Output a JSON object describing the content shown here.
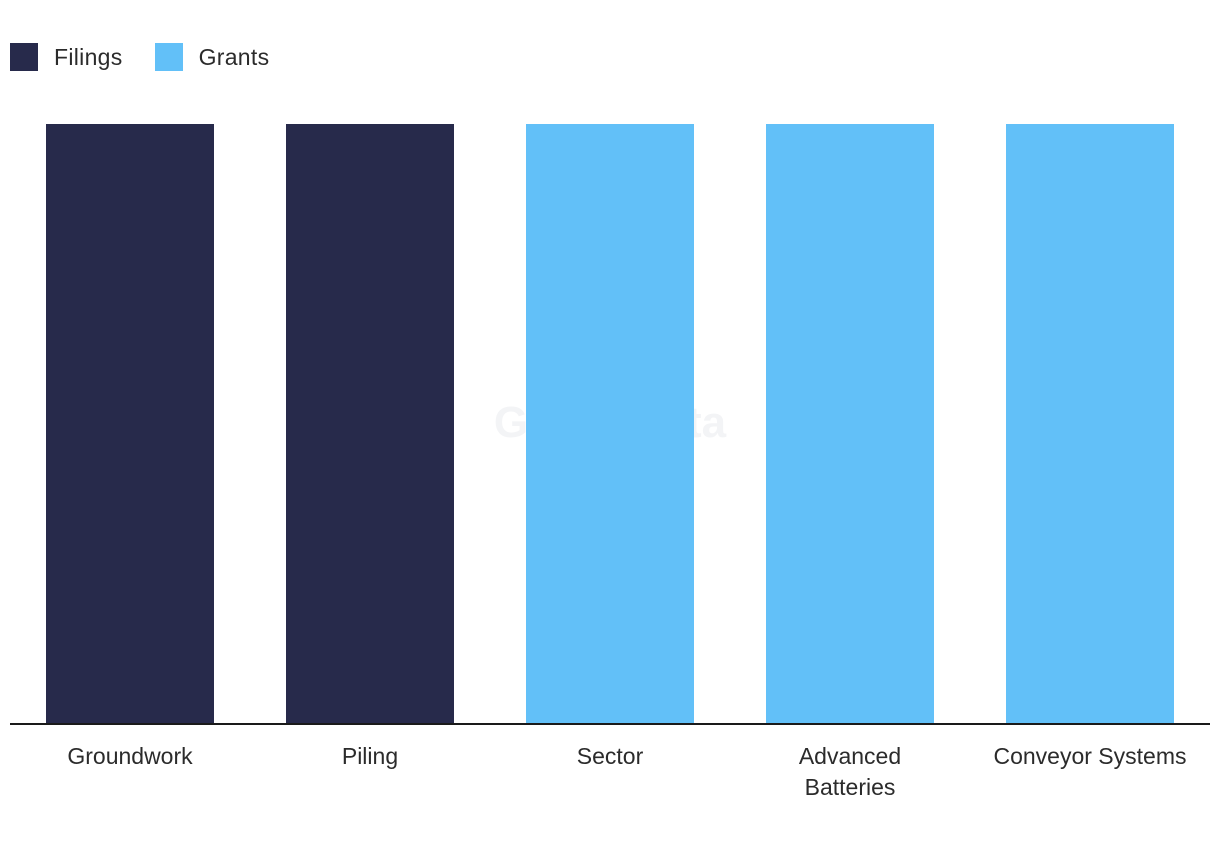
{
  "watermark": "GlobalData",
  "legend": [
    {
      "name": "Filings",
      "color": "#272a4b"
    },
    {
      "name": "Grants",
      "color": "#62c0f8"
    }
  ],
  "chart_data": {
    "type": "bar",
    "categories": [
      "Groundwork",
      "Piling",
      "Sector",
      "Advanced Batteries",
      "Conveyor Systems"
    ],
    "category_lines": [
      [
        "Groundwork"
      ],
      [
        "Piling"
      ],
      [
        "Sector"
      ],
      [
        "Advanced",
        "Batteries"
      ],
      [
        "Conveyor Systems"
      ]
    ],
    "values": [
      1,
      1,
      1,
      1,
      1
    ],
    "bar_series": [
      "Filings",
      "Filings",
      "Grants",
      "Grants",
      "Grants"
    ],
    "series_colors": {
      "Filings": "#272a4b",
      "Grants": "#62c0f8"
    },
    "title": "",
    "xlabel": "",
    "ylabel": "",
    "ylim": [
      0,
      1
    ],
    "grid": false,
    "legend_position": "top-left",
    "axis_color": "#1a1a1a"
  }
}
